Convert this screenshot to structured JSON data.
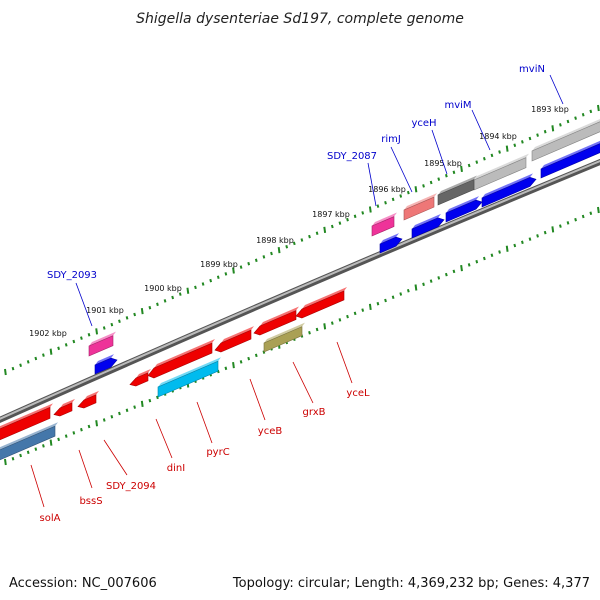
{
  "title": "Shigella dysenteriae Sd197, complete genome",
  "footer": {
    "accession": "Accession: NC_007606",
    "summary": "Topology: circular; Length: 4,369,232 bp; Genes: 4,377"
  },
  "kbp_labels": [
    "1893 kbp",
    "1894 kbp",
    "1895 kbp",
    "1896 kbp",
    "1897 kbp",
    "1898 kbp",
    "1899 kbp",
    "1900 kbp",
    "1901 kbp",
    "1902 kbp"
  ],
  "top_genes": [
    "mviN",
    "mviM",
    "yceH",
    "rimJ",
    "SDY_2087",
    "SDY_2093"
  ],
  "bottom_genes": [
    "yceL",
    "grxB",
    "yceB",
    "pyrC",
    "dinI",
    "SDY_2094",
    "bssS",
    "solA"
  ],
  "colors": {
    "forward": "#0000ee",
    "reverse": "#ee0000",
    "pink": "#ee3399",
    "cyan": "#00bbee",
    "olive": "#aaa055",
    "steel": "#4477aa",
    "salmon": "#ee7777",
    "gray": "#666666",
    "silver": "#bbbbbb",
    "ticks": "#228822",
    "backbone": "#888888"
  }
}
